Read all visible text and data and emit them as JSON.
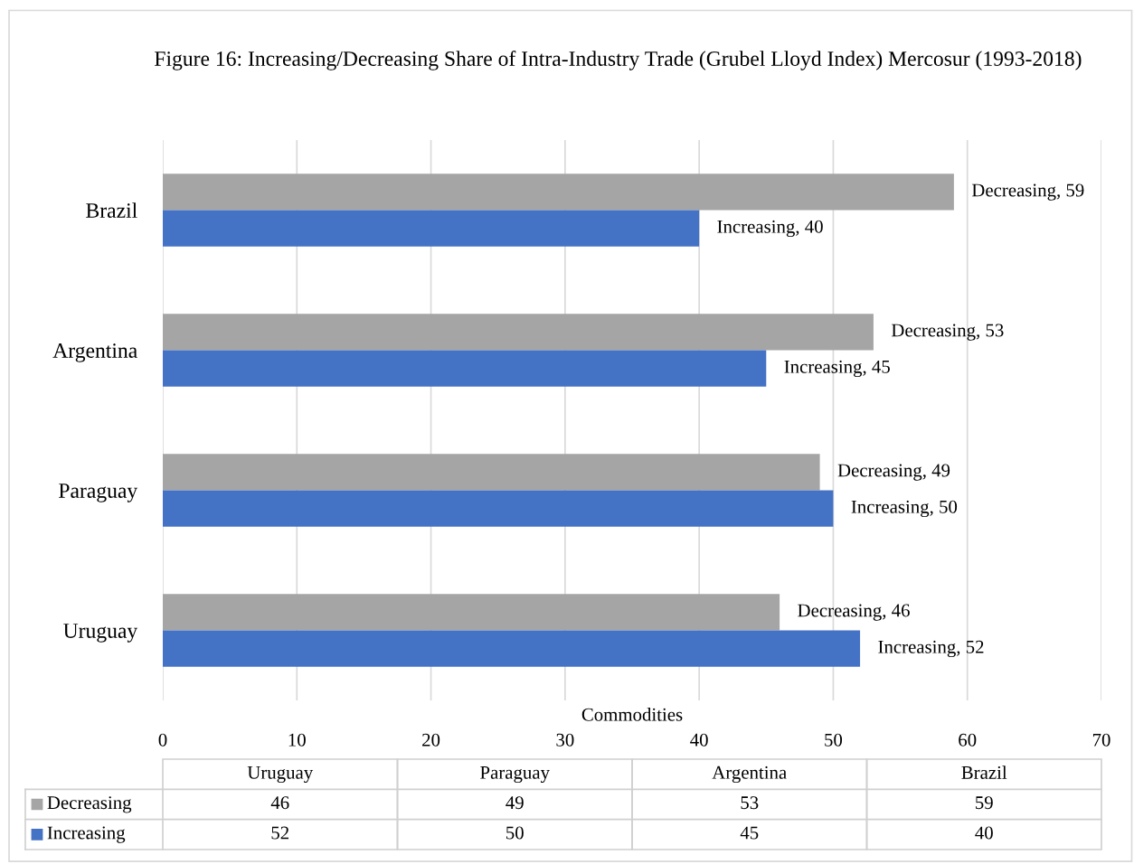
{
  "chart_data": [
    {
      "type": "bar",
      "orientation": "horizontal",
      "title": "Figure 16: Increasing/Decreasing Share of Intra-Industry Trade (Grubel Lloyd Index) Mercosur (1993-2018)",
      "xlabel": "Commodities",
      "categories": [
        "Brazil",
        "Argentina",
        "Paraguay",
        "Uruguay"
      ],
      "series": [
        {
          "name": "Decreasing",
          "color": "#a5a5a5",
          "values": [
            59,
            53,
            49,
            46
          ],
          "value_labels": [
            "Decreasing, 59",
            "Decreasing, 53",
            "Decreasing, 49",
            "Decreasing, 46"
          ]
        },
        {
          "name": "Increasing",
          "color": "#4472c4",
          "values": [
            40,
            45,
            50,
            52
          ],
          "value_labels": [
            "Increasing, 40",
            "Increasing, 45",
            "Increasing, 50",
            "Increasing, 52"
          ]
        }
      ],
      "xlim": [
        0,
        70
      ],
      "xticks": [
        0,
        10,
        20,
        30,
        40,
        50,
        60,
        70
      ],
      "grid": "x",
      "legend": "bottom"
    },
    {
      "type": "other",
      "categories": [
        "Uruguay",
        "Paraguay",
        "Argentina",
        "Brazil"
      ],
      "series": [
        {
          "values": [
            46,
            49,
            53,
            59
          ]
        },
        {
          "values": [
            52,
            50,
            45,
            40
          ]
        }
      ],
      "data_labels": true
    }
  ]
}
